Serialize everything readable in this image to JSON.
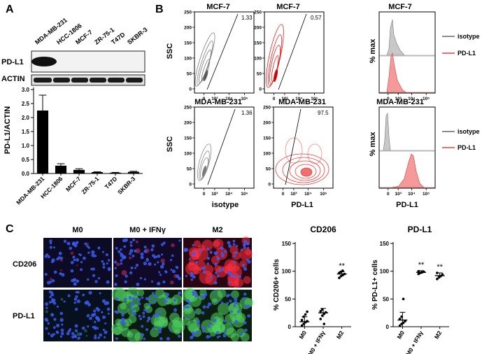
{
  "panels": {
    "a": "A",
    "b": "B",
    "c": "C"
  },
  "western": {
    "lanes": [
      "MDA-MB-231",
      "HCC-1806",
      "MCF-7",
      "ZR-75-1",
      "T47D",
      "SKBR-3"
    ],
    "rows": [
      "PD-L1",
      "ACTIN"
    ]
  },
  "chart_data": [
    {
      "type": "bar",
      "categories": [
        "MDA-MB-231",
        "HCC-1806",
        "MCF-7",
        "ZR-75-1",
        "T47D",
        "SKBR-3"
      ],
      "values": [
        2.25,
        0.28,
        0.13,
        0.05,
        0.03,
        0.06
      ],
      "errors": [
        0.55,
        0.07,
        0.04,
        0.01,
        0.01,
        0.02
      ],
      "ylabel": "PD-L1/ACTIN",
      "ylim": [
        0,
        3
      ],
      "yticks": [
        "0.0",
        "0.5",
        "1.0",
        "1.5",
        "2.0",
        "2.5",
        "3.0"
      ]
    },
    {
      "type": "scatter",
      "title": "CD206",
      "categories": [
        "M0",
        "M0 + IFNγ",
        "M2"
      ],
      "ylabel": "% CD206+ cells",
      "ylim": [
        0,
        150
      ],
      "yticks": [
        "0",
        "50",
        "100",
        "150"
      ],
      "means": [
        9,
        25,
        95
      ],
      "sd": [
        9,
        8,
        4
      ],
      "points": [
        [
          2,
          5,
          8,
          10,
          12,
          18,
          22,
          27
        ],
        [
          14,
          20,
          23,
          26,
          28,
          31,
          5
        ],
        [
          88,
          91,
          93,
          95,
          97,
          99,
          101
        ]
      ],
      "significance": [
        "",
        "",
        "**"
      ]
    },
    {
      "type": "scatter",
      "title": "PD-L1",
      "categories": [
        "M0",
        "M0 + IFNγ",
        "M2"
      ],
      "ylabel": "% PD-L1+ cells",
      "ylim": [
        0,
        150
      ],
      "yticks": [
        "0",
        "50",
        "100",
        "150"
      ],
      "means": [
        12,
        98,
        92
      ],
      "sd": [
        14,
        3,
        5
      ],
      "points": [
        [
          2,
          5,
          7,
          10,
          14,
          18,
          50
        ],
        [
          95,
          97,
          98,
          99,
          100
        ],
        [
          86,
          89,
          91,
          94,
          97
        ]
      ],
      "significance": [
        "",
        "**",
        "**"
      ]
    }
  ],
  "flow": {
    "ssc_axis_label": "SSC",
    "pct_max_label": "% max",
    "ssc_ticks": [
      "0",
      "50",
      "100",
      "150",
      "200",
      "250"
    ],
    "x_ticks": [
      "0",
      "10³",
      "10⁴",
      "10⁵"
    ],
    "rows": [
      {
        "plots": [
          {
            "title": "MCF-7",
            "value": "1.33",
            "color": "#808080"
          },
          {
            "title": "MCF-7",
            "value": "0.57",
            "color": "#e03030"
          },
          {
            "title": "MCF-7"
          }
        ]
      },
      {
        "plots": [
          {
            "title": "MDA-MB-231",
            "value": "1.36",
            "color": "#808080",
            "xlabel": "isotype"
          },
          {
            "title": "MDA-MB-231",
            "value": "97.5",
            "color": "#e03030",
            "xlabel": "PD-L1"
          },
          {
            "title": "MDA-MB-231",
            "xlabel": "PD-L1"
          }
        ]
      }
    ],
    "legend": [
      {
        "label": "isotype",
        "color": "#8c8c8c"
      },
      {
        "label": "PD-L1",
        "color": "#f07070"
      }
    ]
  },
  "micro": {
    "columns": [
      "M0",
      "M0 + IFNγ",
      "M2"
    ],
    "rows": [
      "CD206",
      "PD-L1"
    ]
  }
}
